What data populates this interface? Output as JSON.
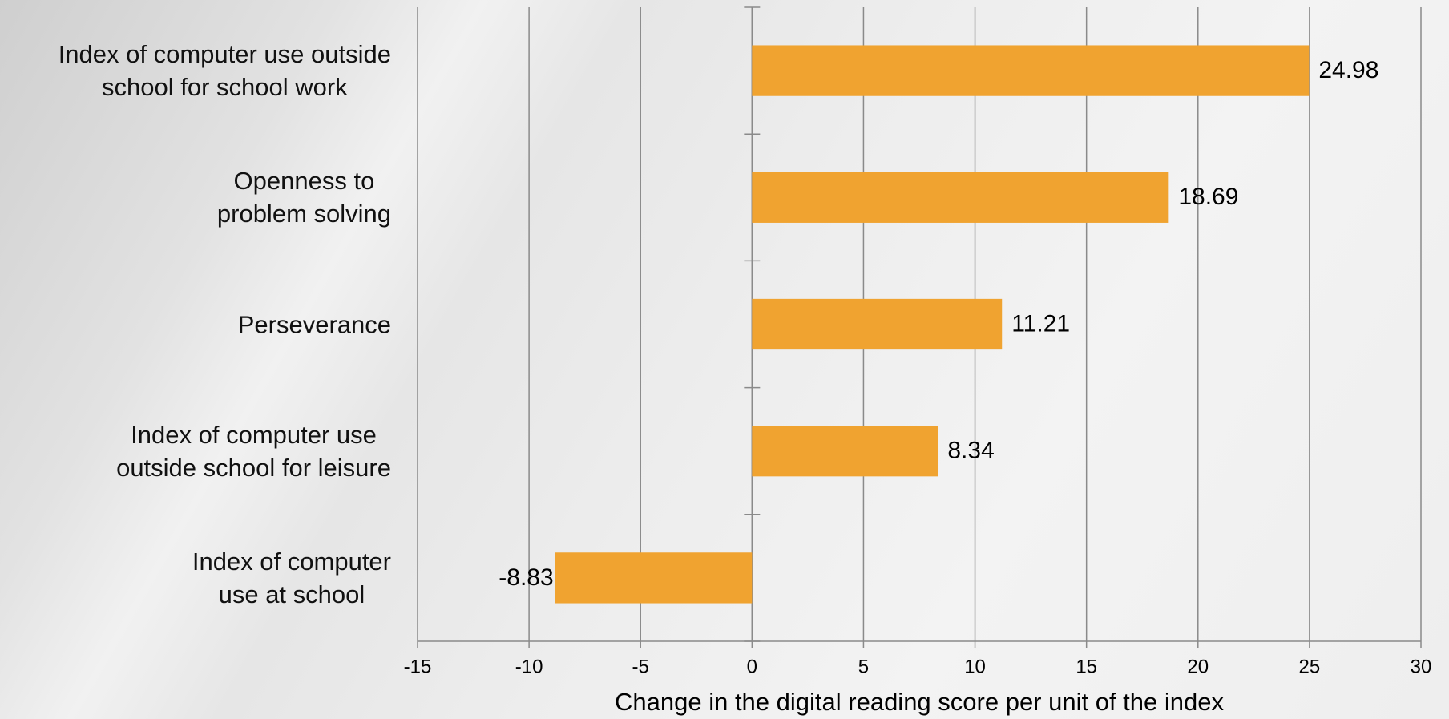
{
  "chart_data": {
    "type": "bar",
    "orientation": "horizontal",
    "x_label": "Change in the digital reading score per unit of the index",
    "categories": [
      "Index of computer use outside\nschool for school work",
      "Openness to\nproblem solving",
      "Perseverance",
      "Index of computer use\noutside school for leisure",
      "Index of computer\nuse at school"
    ],
    "values": [
      24.98,
      18.69,
      11.21,
      8.34,
      -8.83
    ],
    "color": "#f0a330",
    "xlim": [
      -15,
      30
    ],
    "xticks": [
      -15,
      -10,
      -5,
      0,
      5,
      10,
      15,
      20,
      25,
      30
    ],
    "grid": true
  }
}
